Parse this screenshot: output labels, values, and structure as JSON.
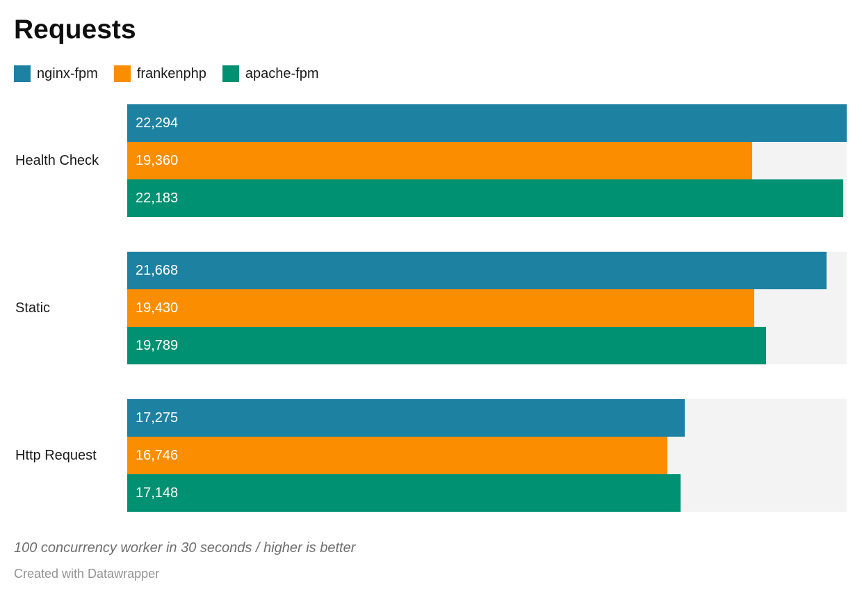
{
  "title": "Requests",
  "legend": {
    "items": [
      {
        "label": "nginx-fpm",
        "color": "#1d81a2"
      },
      {
        "label": "frankenphp",
        "color": "#fa8d00"
      },
      {
        "label": "apache-fpm",
        "color": "#009172"
      }
    ]
  },
  "chart_data": {
    "type": "bar",
    "orientation": "horizontal",
    "title": "Requests",
    "categories": [
      "Health Check",
      "Static",
      "Http Request"
    ],
    "series": [
      {
        "name": "nginx-fpm",
        "color": "#1d81a2",
        "values": [
          22294,
          21668,
          17275
        ],
        "labels": [
          "22,294",
          "21,668",
          "17,275"
        ]
      },
      {
        "name": "frankenphp",
        "color": "#fa8d00",
        "values": [
          19360,
          19430,
          16746
        ],
        "labels": [
          "19,360",
          "19,430",
          "16,746"
        ]
      },
      {
        "name": "apache-fpm",
        "color": "#009172",
        "values": [
          22183,
          19789,
          17148
        ],
        "labels": [
          "22,183",
          "19,789",
          "17,148"
        ]
      }
    ],
    "xlim": [
      0,
      22294
    ],
    "grid": false,
    "legend_position": "top",
    "value_labels": "inside-start",
    "track_color": "#f3f3f3"
  },
  "footer": {
    "note": "100 concurrency worker in 30 seconds / higher is better",
    "credit": "Created with Datawrapper"
  }
}
